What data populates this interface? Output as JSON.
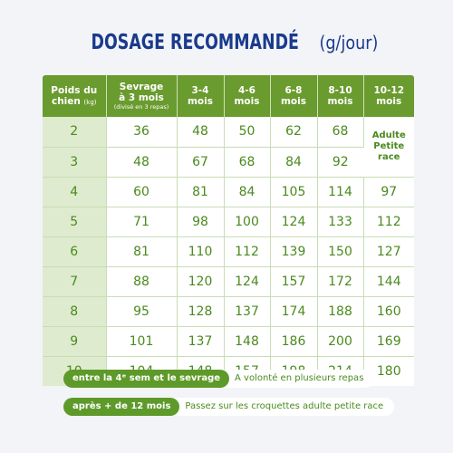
{
  "title": {
    "main": "DOSAGE RECOMMANDÉ",
    "unit": "(g/jour)"
  },
  "table": {
    "headers": [
      {
        "line1": "Poids du",
        "line2": "chien",
        "small": "(kg)"
      },
      {
        "line1": "Sevrage",
        "line2": "à 3 mois",
        "small": "(divisé en 3 repas)"
      },
      {
        "line1": "3-4",
        "line2": "mois"
      },
      {
        "line1": "4-6",
        "line2": "mois"
      },
      {
        "line1": "6-8",
        "line2": "mois"
      },
      {
        "line1": "8-10",
        "line2": "mois"
      },
      {
        "line1": "10-12",
        "line2": "mois"
      }
    ],
    "rows": [
      [
        "2",
        "36",
        "48",
        "50",
        "62",
        "68"
      ],
      [
        "3",
        "48",
        "67",
        "68",
        "84",
        "92"
      ],
      [
        "4",
        "60",
        "81",
        "84",
        "105",
        "114",
        "97"
      ],
      [
        "5",
        "71",
        "98",
        "100",
        "124",
        "133",
        "112"
      ],
      [
        "6",
        "81",
        "110",
        "112",
        "139",
        "150",
        "127"
      ],
      [
        "7",
        "88",
        "120",
        "124",
        "157",
        "172",
        "144"
      ],
      [
        "8",
        "95",
        "128",
        "137",
        "174",
        "188",
        "160"
      ],
      [
        "9",
        "101",
        "137",
        "148",
        "186",
        "200",
        "169"
      ],
      [
        "10",
        "104",
        "148",
        "157",
        "198",
        "214",
        "180"
      ]
    ],
    "merged_cell": {
      "line1": "Adulte",
      "line2": "Petite",
      "line3": "race"
    }
  },
  "notes": [
    {
      "pill": "entre la 4ᵉ sem et le sevrage",
      "text": "A volonté en plusieurs repas"
    },
    {
      "pill": "après + de 12 mois",
      "text": "Passez sur les croquettes adulte petite race"
    }
  ],
  "colors": {
    "title": "#1a3a8c",
    "header_green": "#6a9b2e",
    "value_green": "#4a8a1e",
    "first_col_bg": "#deebce"
  }
}
